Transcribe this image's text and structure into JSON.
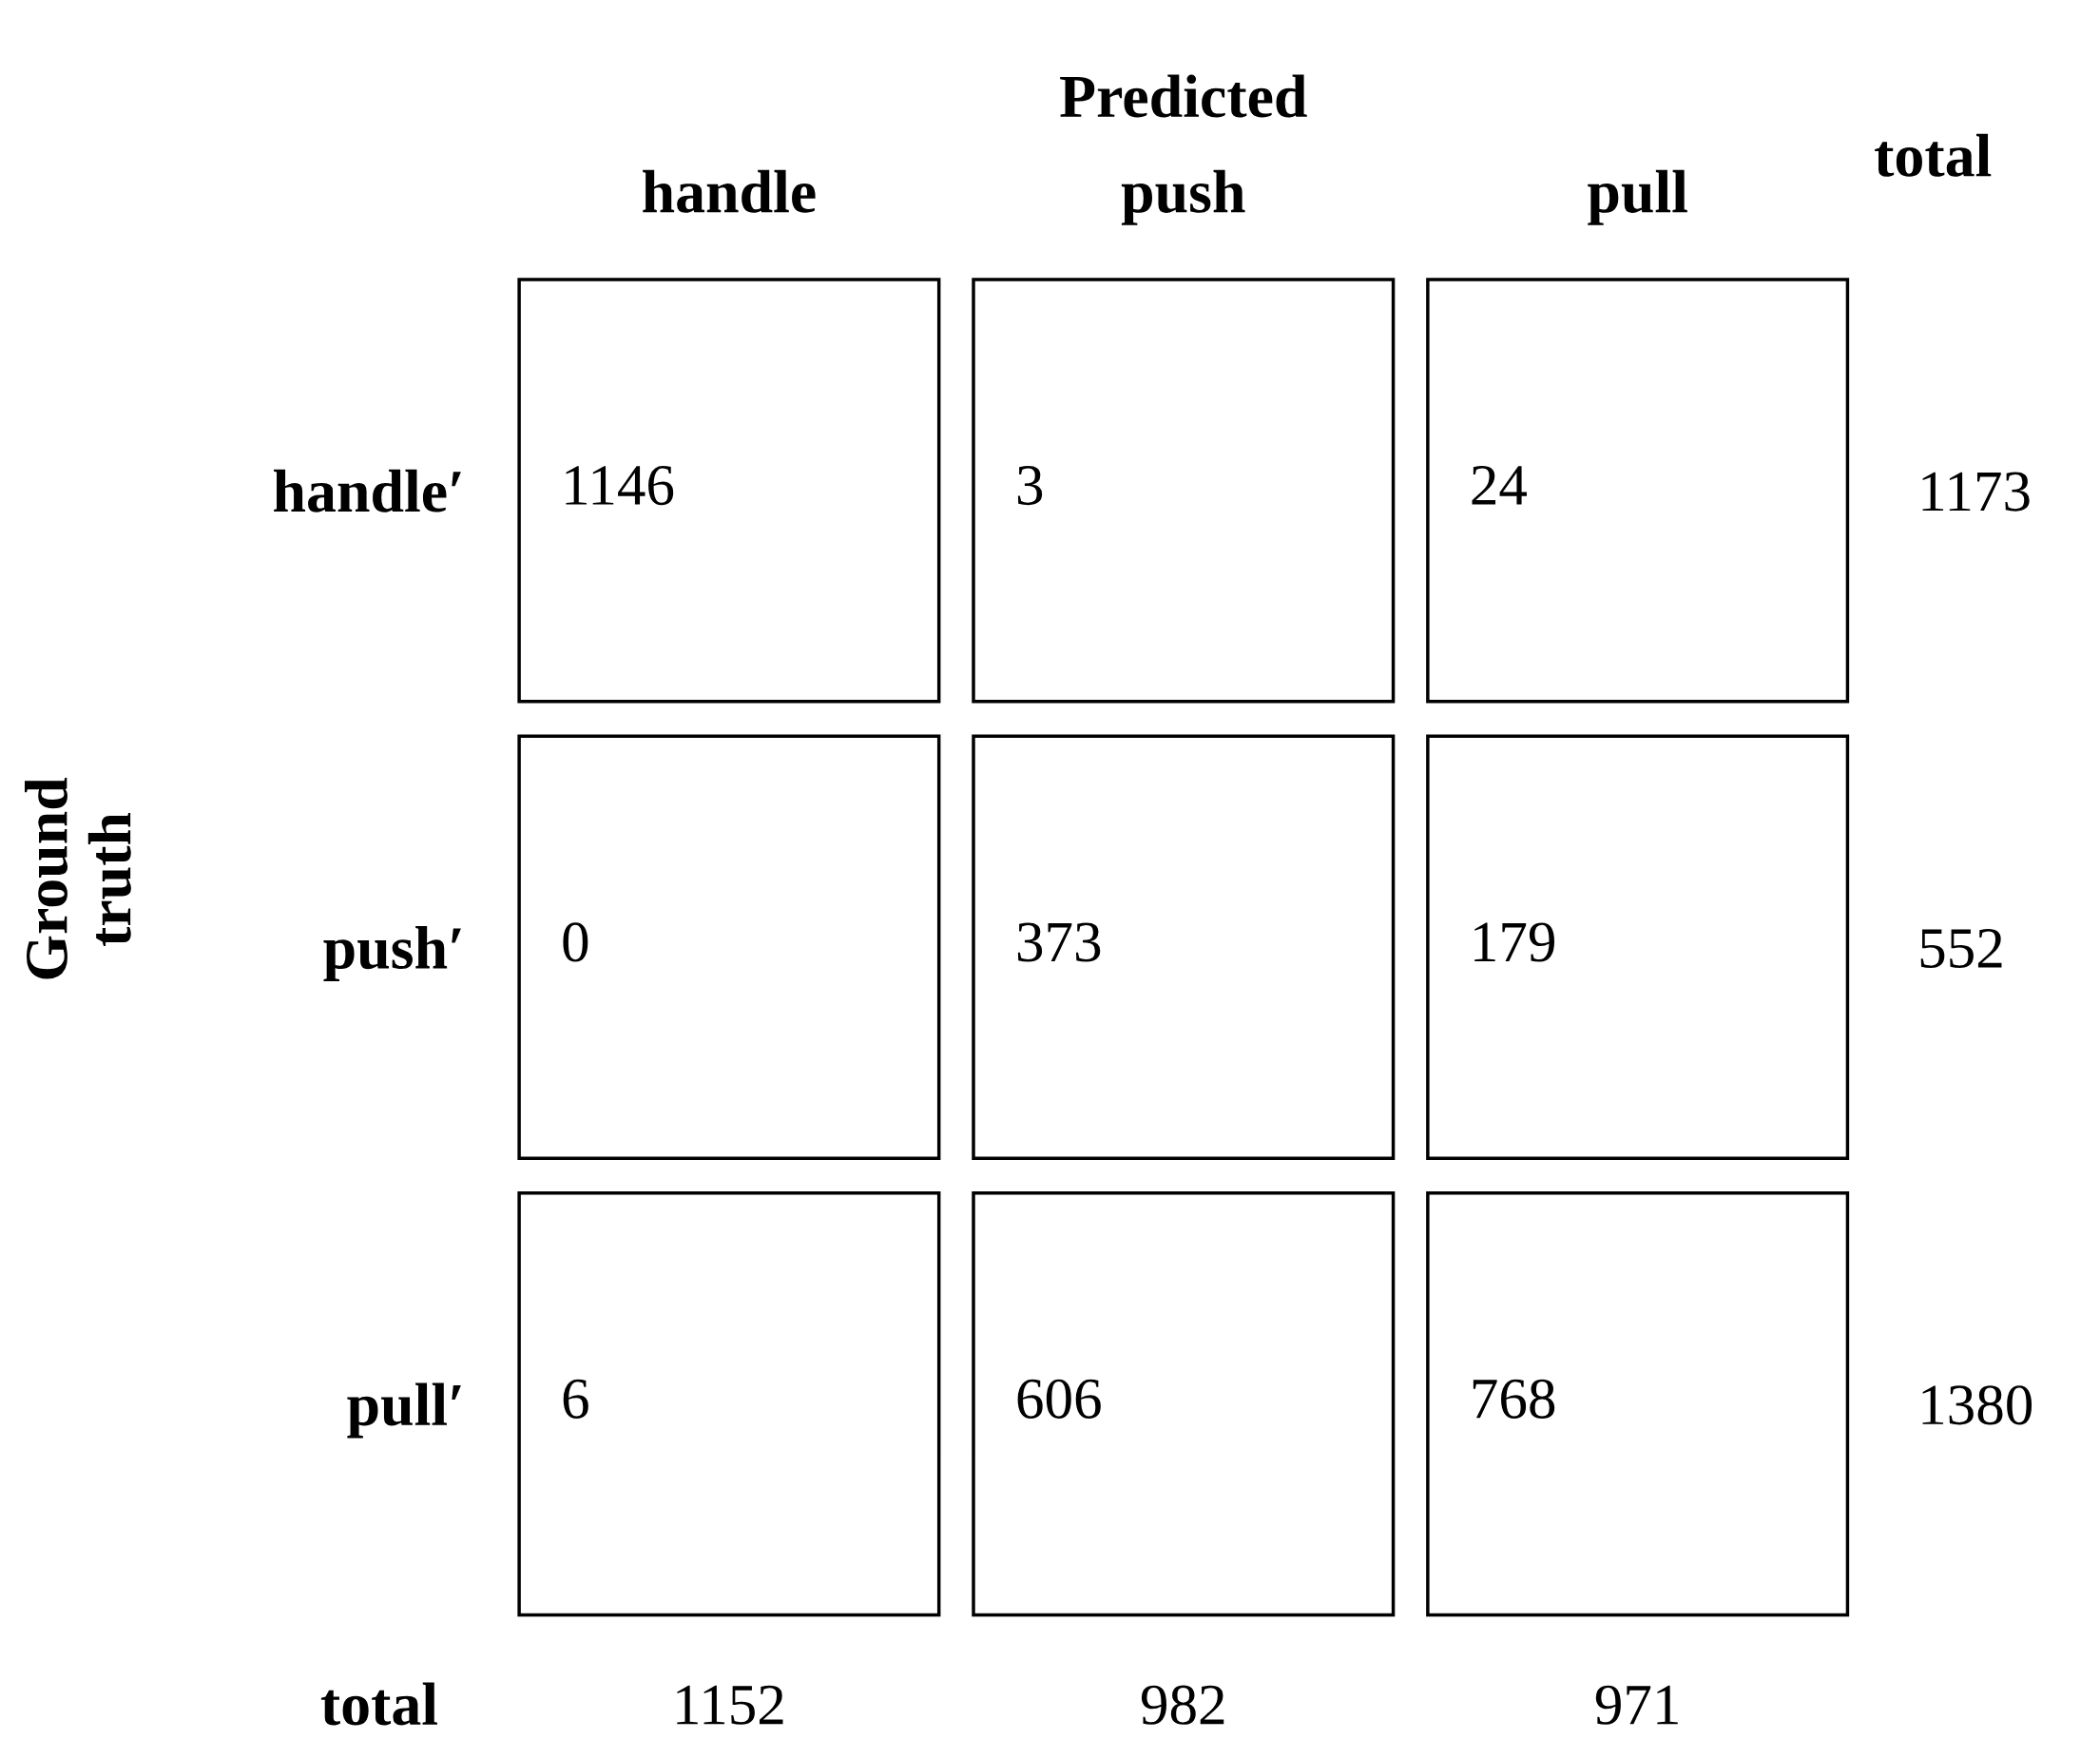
{
  "chart_data": {
    "type": "heatmap",
    "title": "Predicted",
    "ylabel": "Ground\ntruth",
    "categories": [
      "handle",
      "push",
      "pull"
    ],
    "y_categories": [
      "handle′",
      "push′",
      "pull′"
    ],
    "y2_categories": [
      "1173",
      "552",
      "1380"
    ],
    "cells": [
      [
        1146,
        3,
        24
      ],
      [
        0,
        373,
        179
      ],
      [
        6,
        606,
        768
      ]
    ],
    "data_labels": true,
    "annotations": [
      "total",
      "total",
      "1152",
      "982",
      "971"
    ]
  }
}
